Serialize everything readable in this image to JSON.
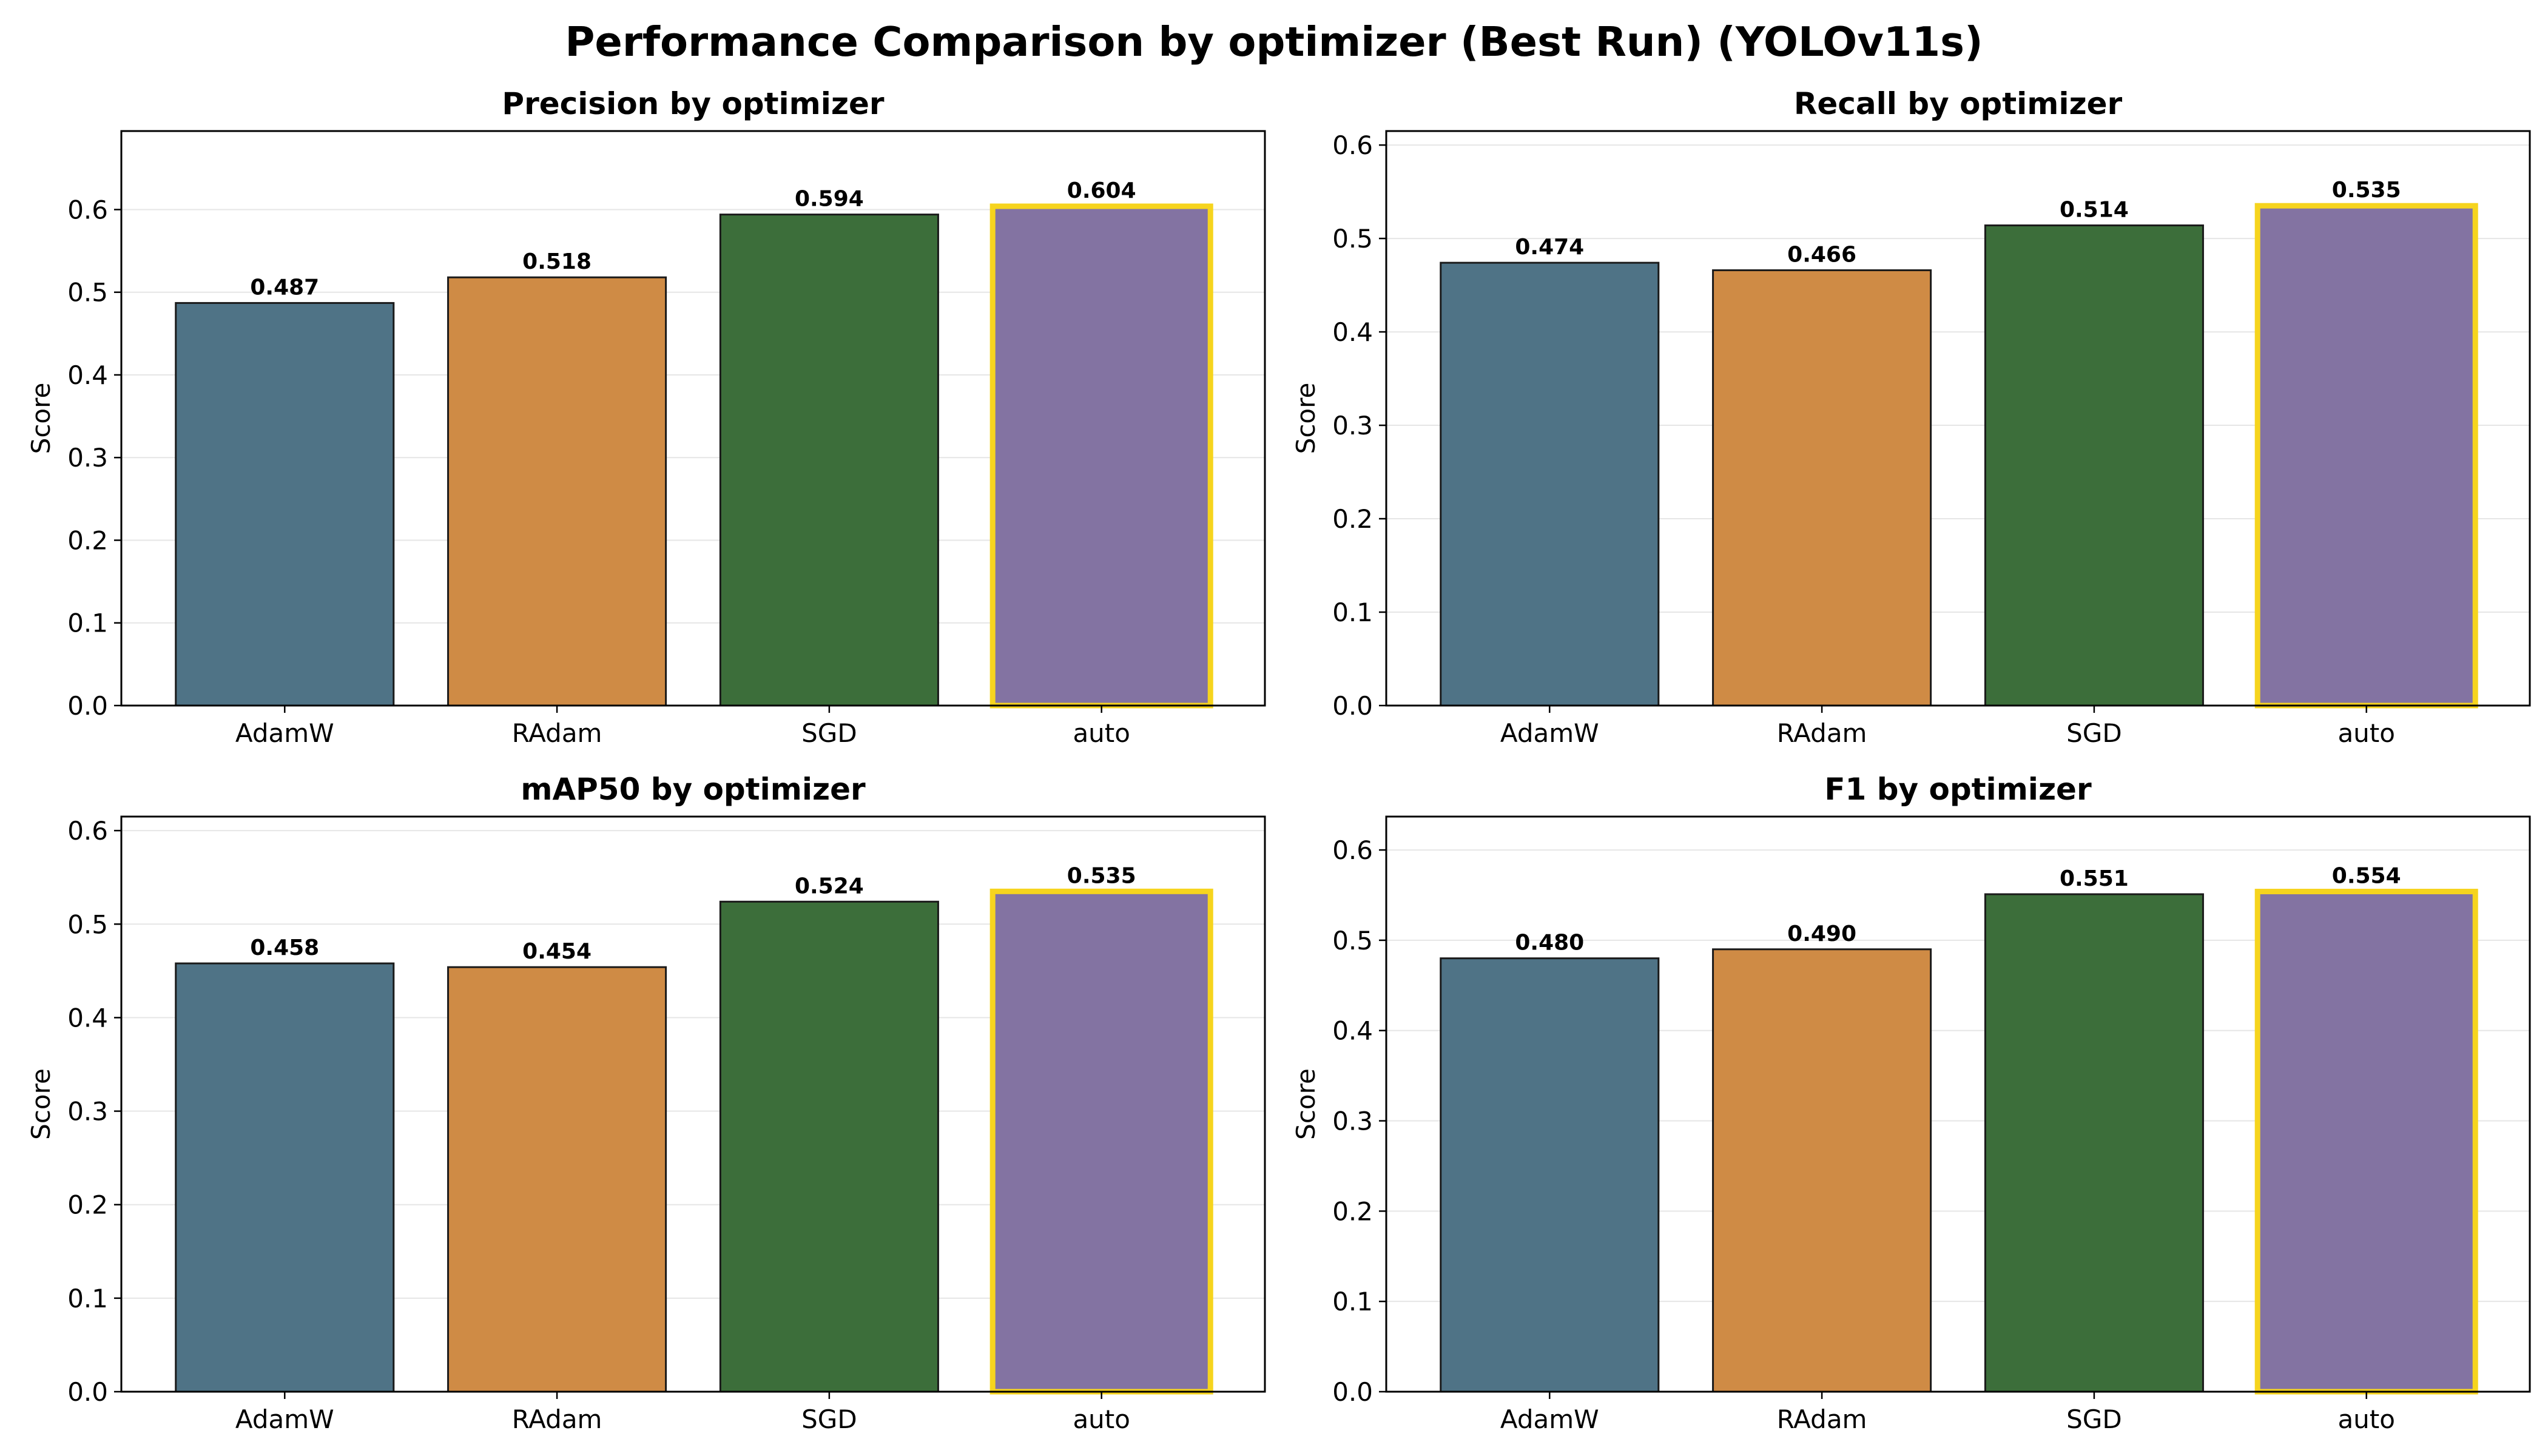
{
  "suptitle": "Performance Comparison by optimizer (Best Run) (YOLOv11s)",
  "chart_data": [
    {
      "type": "bar",
      "title": "Precision by optimizer",
      "xlabel": "",
      "ylabel": "Score",
      "categories": [
        "AdamW",
        "RAdam",
        "SGD",
        "auto"
      ],
      "values": [
        0.487,
        0.518,
        0.594,
        0.604
      ],
      "value_labels": [
        "0.487",
        "0.518",
        "0.594",
        "0.604"
      ],
      "ylim": [
        0,
        0.695
      ],
      "yticks": [
        0.0,
        0.1,
        0.2,
        0.3,
        0.4,
        0.5,
        0.6
      ],
      "ytick_labels": [
        "0.0",
        "0.1",
        "0.2",
        "0.3",
        "0.4",
        "0.5",
        "0.6"
      ],
      "highlight": "auto",
      "grid": "y"
    },
    {
      "type": "bar",
      "title": "Recall by optimizer",
      "xlabel": "",
      "ylabel": "Score",
      "categories": [
        "AdamW",
        "RAdam",
        "SGD",
        "auto"
      ],
      "values": [
        0.474,
        0.466,
        0.514,
        0.535
      ],
      "value_labels": [
        "0.474",
        "0.466",
        "0.514",
        "0.535"
      ],
      "ylim": [
        0,
        0.615
      ],
      "yticks": [
        0.0,
        0.1,
        0.2,
        0.3,
        0.4,
        0.5,
        0.6
      ],
      "ytick_labels": [
        "0.0",
        "0.1",
        "0.2",
        "0.3",
        "0.4",
        "0.5",
        "0.6"
      ],
      "highlight": "auto",
      "grid": "y"
    },
    {
      "type": "bar",
      "title": "mAP50 by optimizer",
      "xlabel": "",
      "ylabel": "Score",
      "categories": [
        "AdamW",
        "RAdam",
        "SGD",
        "auto"
      ],
      "values": [
        0.458,
        0.454,
        0.524,
        0.535
      ],
      "value_labels": [
        "0.458",
        "0.454",
        "0.524",
        "0.535"
      ],
      "ylim": [
        0,
        0.615
      ],
      "yticks": [
        0.0,
        0.1,
        0.2,
        0.3,
        0.4,
        0.5,
        0.6
      ],
      "ytick_labels": [
        "0.0",
        "0.1",
        "0.2",
        "0.3",
        "0.4",
        "0.5",
        "0.6"
      ],
      "highlight": "auto",
      "grid": "y"
    },
    {
      "type": "bar",
      "title": "F1 by optimizer",
      "xlabel": "",
      "ylabel": "Score",
      "categories": [
        "AdamW",
        "RAdam",
        "SGD",
        "auto"
      ],
      "values": [
        0.48,
        0.49,
        0.551,
        0.554
      ],
      "value_labels": [
        "0.480",
        "0.490",
        "0.551",
        "0.554"
      ],
      "ylim": [
        0,
        0.637
      ],
      "yticks": [
        0.0,
        0.1,
        0.2,
        0.3,
        0.4,
        0.5,
        0.6
      ],
      "ytick_labels": [
        "0.0",
        "0.1",
        "0.2",
        "0.3",
        "0.4",
        "0.5",
        "0.6"
      ],
      "highlight": "auto",
      "grid": "y"
    }
  ],
  "colors": {
    "bars": [
      "#4f7386",
      "#cf8b45",
      "#3c6e3a",
      "#8373a2"
    ],
    "bar_edge": "#1a1a1a",
    "highlight_edge": "#f6d41e",
    "grid": "#e6e6e6",
    "axis": "#000000",
    "background": "#ffffff"
  }
}
